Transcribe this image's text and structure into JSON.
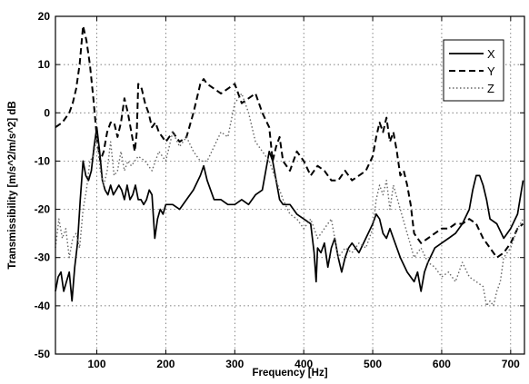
{
  "chart_data": {
    "type": "line",
    "title": "",
    "xlabel": "Frequency [Hz]",
    "ylabel": "Transmissibility [m/s^2/m/s^2] dB",
    "xlim": [
      40,
      720
    ],
    "ylim": [
      -50,
      20
    ],
    "xticks": [
      100,
      200,
      300,
      400,
      500,
      600,
      700
    ],
    "yticks": [
      -50,
      -40,
      -30,
      -20,
      -10,
      0,
      10,
      20
    ],
    "grid": true,
    "legend_position": "top-right",
    "series": [
      {
        "name": "X",
        "style": "solid",
        "color": "#000000",
        "x": [
          40,
          44,
          48,
          52,
          56,
          60,
          64,
          68,
          72,
          76,
          80,
          84,
          88,
          92,
          96,
          100,
          104,
          108,
          112,
          116,
          120,
          124,
          128,
          132,
          136,
          140,
          144,
          148,
          152,
          156,
          160,
          164,
          168,
          172,
          176,
          180,
          184,
          188,
          192,
          196,
          200,
          210,
          220,
          230,
          240,
          250,
          255,
          260,
          265,
          270,
          280,
          290,
          300,
          310,
          320,
          330,
          340,
          345,
          350,
          355,
          360,
          365,
          370,
          380,
          390,
          400,
          410,
          415,
          418,
          420,
          425,
          430,
          435,
          440,
          445,
          450,
          455,
          460,
          465,
          470,
          480,
          490,
          500,
          505,
          510,
          515,
          520,
          525,
          530,
          540,
          550,
          560,
          565,
          570,
          575,
          580,
          590,
          600,
          610,
          620,
          630,
          640,
          645,
          650,
          655,
          660,
          665,
          670,
          680,
          690,
          700,
          710,
          718
        ],
        "y": [
          -37,
          -34,
          -33,
          -37,
          -35,
          -33,
          -39,
          -32,
          -27,
          -18,
          -10,
          -13,
          -14,
          -12,
          -7,
          -3,
          -8,
          -14,
          -16,
          -17,
          -15,
          -17,
          -16,
          -15,
          -16,
          -18,
          -15,
          -18,
          -17,
          -15,
          -18,
          -18,
          -19,
          -18,
          -16,
          -17,
          -26,
          -22,
          -20,
          -21,
          -19,
          -19,
          -20,
          -18,
          -16,
          -13,
          -11,
          -14,
          -16,
          -18,
          -18,
          -19,
          -19,
          -18,
          -19,
          -17,
          -16,
          -12,
          -8,
          -10,
          -14,
          -18,
          -19,
          -19,
          -21,
          -22,
          -23,
          -29,
          -35,
          -28,
          -29,
          -27,
          -32,
          -28,
          -26,
          -30,
          -33,
          -30,
          -28,
          -27,
          -29,
          -26,
          -23,
          -21,
          -22,
          -25,
          -26,
          -24,
          -26,
          -30,
          -33,
          -35,
          -33,
          -37,
          -33,
          -31,
          -28,
          -27,
          -26,
          -25,
          -23,
          -20,
          -16,
          -13,
          -13,
          -15,
          -18,
          -22,
          -23,
          -26,
          -24,
          -21,
          -14
        ]
      },
      {
        "name": "Y",
        "style": "dashed",
        "color": "#000000",
        "x": [
          40,
          50,
          60,
          65,
          70,
          75,
          80,
          85,
          90,
          95,
          100,
          105,
          110,
          115,
          120,
          125,
          130,
          135,
          140,
          145,
          150,
          155,
          158,
          160,
          165,
          170,
          175,
          180,
          185,
          190,
          200,
          210,
          220,
          230,
          240,
          250,
          255,
          260,
          270,
          280,
          290,
          300,
          310,
          320,
          330,
          340,
          350,
          355,
          360,
          365,
          370,
          380,
          390,
          400,
          410,
          420,
          430,
          440,
          450,
          460,
          470,
          480,
          490,
          500,
          505,
          510,
          515,
          520,
          525,
          530,
          535,
          540,
          545,
          550,
          555,
          560,
          570,
          580,
          590,
          600,
          610,
          620,
          630,
          640,
          650,
          660,
          670,
          680,
          690,
          700,
          710,
          718
        ],
        "y": [
          -3,
          -2,
          0,
          2,
          5,
          10,
          18,
          15,
          10,
          3,
          -5,
          -10,
          -8,
          -4,
          -2,
          -2,
          -5,
          -2,
          3,
          0,
          -4,
          -8,
          -4,
          6,
          5,
          2,
          0,
          -3,
          -2,
          -4,
          -6,
          -4,
          -6,
          -5,
          0,
          6,
          7,
          6,
          5,
          4,
          5,
          6,
          2,
          3,
          4,
          0,
          -3,
          -10,
          -7,
          -5,
          -10,
          -12,
          -8,
          -10,
          -13,
          -11,
          -12,
          -14,
          -14,
          -12,
          -14,
          -13,
          -12,
          -9,
          -5,
          -2,
          -4,
          -1,
          -6,
          -4,
          -8,
          -13,
          -12,
          -15,
          -19,
          -25,
          -27,
          -26,
          -25,
          -24,
          -24,
          -23,
          -23,
          -22,
          -23,
          -26,
          -28,
          -30,
          -29,
          -27,
          -24,
          -23
        ]
      },
      {
        "name": "Z",
        "style": "dotted",
        "color": "#666666",
        "x": [
          40,
          45,
          50,
          55,
          60,
          65,
          70,
          75,
          80,
          85,
          90,
          95,
          100,
          105,
          110,
          115,
          120,
          125,
          130,
          135,
          140,
          145,
          150,
          160,
          170,
          180,
          190,
          200,
          210,
          220,
          230,
          240,
          250,
          260,
          270,
          280,
          290,
          300,
          310,
          320,
          330,
          340,
          350,
          360,
          370,
          380,
          390,
          400,
          410,
          420,
          430,
          440,
          450,
          460,
          470,
          480,
          490,
          500,
          505,
          510,
          515,
          520,
          525,
          530,
          540,
          550,
          560,
          570,
          580,
          590,
          600,
          610,
          620,
          630,
          640,
          650,
          660,
          665,
          670,
          675,
          680,
          685,
          690,
          700,
          710,
          718
        ],
        "y": [
          -28,
          -22,
          -26,
          -24,
          -30,
          -26,
          -25,
          -28,
          -20,
          -16,
          -10,
          -9,
          -5,
          -12,
          -15,
          -12,
          -6,
          -13,
          -12,
          -8,
          -12,
          -10,
          -11,
          -9,
          -10,
          -12,
          -8,
          -10,
          -4,
          -7,
          -5,
          -8,
          -10,
          -10,
          -7,
          -4,
          -5,
          2,
          4,
          0,
          -6,
          -8,
          -10,
          -14,
          -18,
          -21,
          -22,
          -24,
          -22,
          -26,
          -24,
          -22,
          -30,
          -28,
          -29,
          -27,
          -28,
          -24,
          -18,
          -15,
          -17,
          -14,
          -20,
          -15,
          -20,
          -25,
          -30,
          -28,
          -31,
          -32,
          -34,
          -33,
          -35,
          -31,
          -34,
          -35,
          -36,
          -40,
          -39,
          -40,
          -37,
          -35,
          -30,
          -28,
          -24,
          -22
        ]
      }
    ]
  }
}
